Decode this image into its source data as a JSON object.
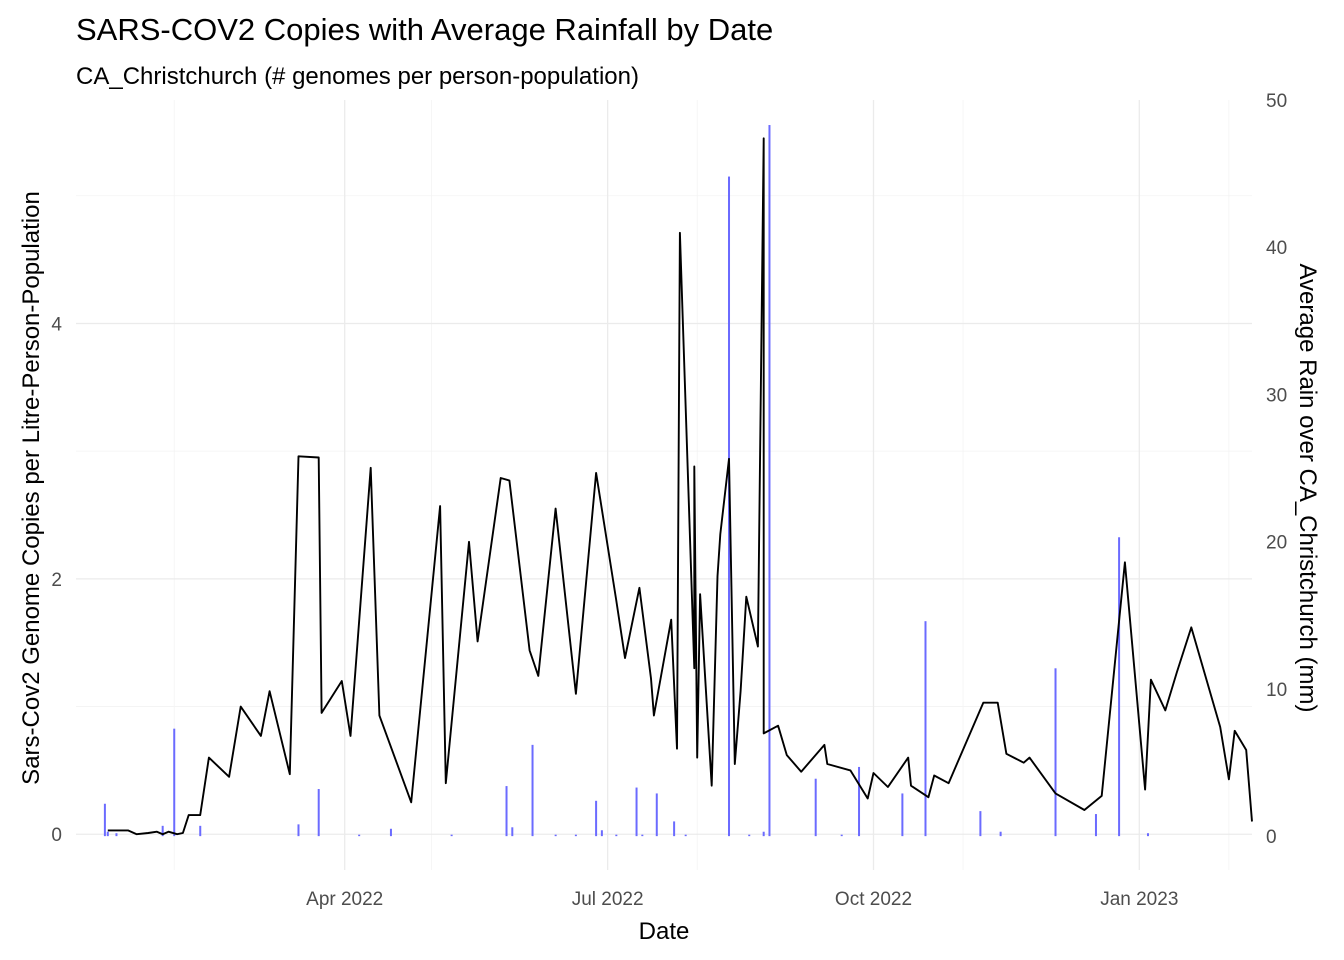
{
  "chart_data": {
    "type": "line",
    "title": "SARS-COV2 Copies with Average Rainfall by Date",
    "subtitle": "CA_Christchurch (# genomes per person-population)",
    "xlabel": "Date",
    "ylabel": "Sars-Cov2 Genome Copies per Litre-Person-Population",
    "y2label": "Average Rain over CA_Christchurch (mm)",
    "x_range": [
      "2021-12-29",
      "2023-02-09"
    ],
    "ylim": [
      -0.28,
      5.75
    ],
    "y2lim": [
      -2.3,
      50
    ],
    "x_ticks": [
      {
        "date": "2022-04-01",
        "label": "Apr 2022"
      },
      {
        "date": "2022-07-01",
        "label": "Jul 2022"
      },
      {
        "date": "2022-10-01",
        "label": "Oct 2022"
      },
      {
        "date": "2023-01-01",
        "label": "Jan 2023"
      }
    ],
    "x_minor_ticks": [
      "2022-02-01",
      "2022-05-01",
      "2022-08-01",
      "2022-11-01",
      "2023-02-01"
    ],
    "y_ticks": [
      0,
      2,
      4
    ],
    "y_minor_ticks": [
      1,
      3,
      5
    ],
    "y2_ticks": [
      0,
      10,
      20,
      30,
      40,
      50
    ],
    "y2_minor_ticks": [
      5,
      15,
      25,
      35,
      45
    ],
    "grid": true,
    "series": [
      {
        "kind": "line",
        "color": "#000000",
        "points": [
          [
            "2022-01-09",
            0.03
          ],
          [
            "2022-01-12",
            0.03
          ],
          [
            "2022-01-16",
            0.03
          ],
          [
            "2022-01-19",
            0.0
          ],
          [
            "2022-01-23",
            0.01
          ],
          [
            "2022-01-26",
            0.02
          ],
          [
            "2022-01-28",
            0.0
          ],
          [
            "2022-01-30",
            0.02
          ],
          [
            "2022-02-02",
            0.0
          ],
          [
            "2022-02-04",
            0.01
          ],
          [
            "2022-02-06",
            0.15
          ],
          [
            "2022-02-10",
            0.15
          ],
          [
            "2022-02-13",
            0.6
          ],
          [
            "2022-02-20",
            0.45
          ],
          [
            "2022-02-24",
            1.0
          ],
          [
            "2022-03-03",
            0.77
          ],
          [
            "2022-03-06",
            1.12
          ],
          [
            "2022-03-13",
            0.47
          ],
          [
            "2022-03-16",
            2.96
          ],
          [
            "2022-03-23",
            2.95
          ],
          [
            "2022-03-24",
            0.95
          ],
          [
            "2022-03-31",
            1.2
          ],
          [
            "2022-04-03",
            0.77
          ],
          [
            "2022-04-10",
            2.87
          ],
          [
            "2022-04-13",
            0.93
          ],
          [
            "2022-04-24",
            0.25
          ],
          [
            "2022-05-04",
            2.57
          ],
          [
            "2022-05-06",
            0.4
          ],
          [
            "2022-05-14",
            2.29
          ],
          [
            "2022-05-17",
            1.51
          ],
          [
            "2022-05-25",
            2.79
          ],
          [
            "2022-05-28",
            2.77
          ],
          [
            "2022-06-04",
            1.44
          ],
          [
            "2022-06-07",
            1.24
          ],
          [
            "2022-06-13",
            2.55
          ],
          [
            "2022-06-20",
            1.1
          ],
          [
            "2022-06-27",
            2.83
          ],
          [
            "2022-07-04",
            1.83
          ],
          [
            "2022-07-07",
            1.38
          ],
          [
            "2022-07-16",
            1.22
          ],
          [
            "2022-07-17",
            0.93
          ],
          [
            "2022-07-23",
            1.68
          ],
          [
            "2022-07-25",
            0.67
          ],
          [
            "2022-07-31",
            1.3
          ],
          [
            "2022-08-02",
            1.88
          ],
          [
            "2022-08-09",
            2.35
          ],
          [
            "2022-08-12",
            2.94
          ],
          [
            "2022-08-18",
            1.86
          ],
          [
            "2022-08-24",
            5.45
          ],
          [
            "2022-07-12",
            1.93
          ],
          [
            "2022-07-26",
            4.71
          ],
          [
            "2022-07-31",
            2.88
          ],
          [
            "2022-08-01",
            0.6
          ],
          [
            "2022-08-06",
            0.38
          ],
          [
            "2022-08-08",
            2.02
          ],
          [
            "2022-08-14",
            0.55
          ],
          [
            "2022-08-16",
            1.12
          ],
          [
            "2022-08-22",
            1.47
          ],
          [
            "2022-08-24",
            0.79
          ],
          [
            "2022-08-29",
            0.85
          ],
          [
            "2022-09-01",
            0.62
          ],
          [
            "2022-09-06",
            0.49
          ],
          [
            "2022-09-14",
            0.7
          ],
          [
            "2022-09-15",
            0.55
          ],
          [
            "2022-09-23",
            0.5
          ],
          [
            "2022-09-29",
            0.28
          ],
          [
            "2022-10-01",
            0.48
          ],
          [
            "2022-10-06",
            0.37
          ],
          [
            "2022-10-13",
            0.6
          ],
          [
            "2022-10-14",
            0.38
          ],
          [
            "2022-10-20",
            0.29
          ],
          [
            "2022-10-22",
            0.46
          ],
          [
            "2022-10-27",
            0.4
          ],
          [
            "2022-11-08",
            1.03
          ],
          [
            "2022-11-13",
            1.03
          ],
          [
            "2022-11-16",
            0.63
          ],
          [
            "2022-11-22",
            0.56
          ],
          [
            "2022-11-24",
            0.6
          ],
          [
            "2022-12-03",
            0.32
          ],
          [
            "2022-12-13",
            0.19
          ],
          [
            "2022-12-19",
            0.3
          ],
          [
            "2022-12-27",
            2.13
          ],
          [
            "2023-01-03",
            0.35
          ],
          [
            "2023-01-05",
            1.21
          ],
          [
            "2023-01-10",
            0.97
          ],
          [
            "2023-01-14",
            1.27
          ],
          [
            "2023-01-19",
            1.62
          ],
          [
            "2023-01-29",
            0.84
          ],
          [
            "2023-02-01",
            0.43
          ],
          [
            "2023-02-03",
            0.81
          ],
          [
            "2023-02-07",
            0.66
          ],
          [
            "2023-02-09",
            0.1
          ]
        ]
      },
      {
        "kind": "bar",
        "axis": "right",
        "color": "#6b6bff",
        "points": [
          [
            "2022-01-08",
            2.2
          ],
          [
            "2022-01-09",
            0.3
          ],
          [
            "2022-01-12",
            0.2
          ],
          [
            "2022-01-28",
            0.7
          ],
          [
            "2022-02-01",
            7.3
          ],
          [
            "2022-02-10",
            0.7
          ],
          [
            "2022-03-16",
            0.8
          ],
          [
            "2022-03-23",
            3.2
          ],
          [
            "2022-04-06",
            0.1
          ],
          [
            "2022-04-17",
            0.5
          ],
          [
            "2022-05-08",
            0.1
          ],
          [
            "2022-05-27",
            3.4
          ],
          [
            "2022-05-29",
            0.6
          ],
          [
            "2022-06-05",
            6.2
          ],
          [
            "2022-06-13",
            0.1
          ],
          [
            "2022-06-20",
            0.1
          ],
          [
            "2022-06-27",
            2.4
          ],
          [
            "2022-06-29",
            0.4
          ],
          [
            "2022-07-04",
            0.1
          ],
          [
            "2022-07-11",
            3.3
          ],
          [
            "2022-07-13",
            0.1
          ],
          [
            "2022-07-18",
            2.9
          ],
          [
            "2022-07-24",
            1.0
          ],
          [
            "2022-07-28",
            0.1
          ],
          [
            "2022-08-12",
            44.8
          ],
          [
            "2022-08-19",
            0.1
          ],
          [
            "2022-08-24",
            0.3
          ],
          [
            "2022-08-26",
            48.3
          ],
          [
            "2022-09-11",
            3.9
          ],
          [
            "2022-09-20",
            0.1
          ],
          [
            "2022-09-26",
            4.7
          ],
          [
            "2022-10-11",
            2.9
          ],
          [
            "2022-10-19",
            14.6
          ],
          [
            "2022-11-07",
            1.7
          ],
          [
            "2022-11-14",
            0.3
          ],
          [
            "2022-12-03",
            11.4
          ],
          [
            "2022-12-17",
            1.5
          ],
          [
            "2022-12-25",
            20.3
          ],
          [
            "2023-01-04",
            0.2
          ]
        ]
      }
    ]
  }
}
